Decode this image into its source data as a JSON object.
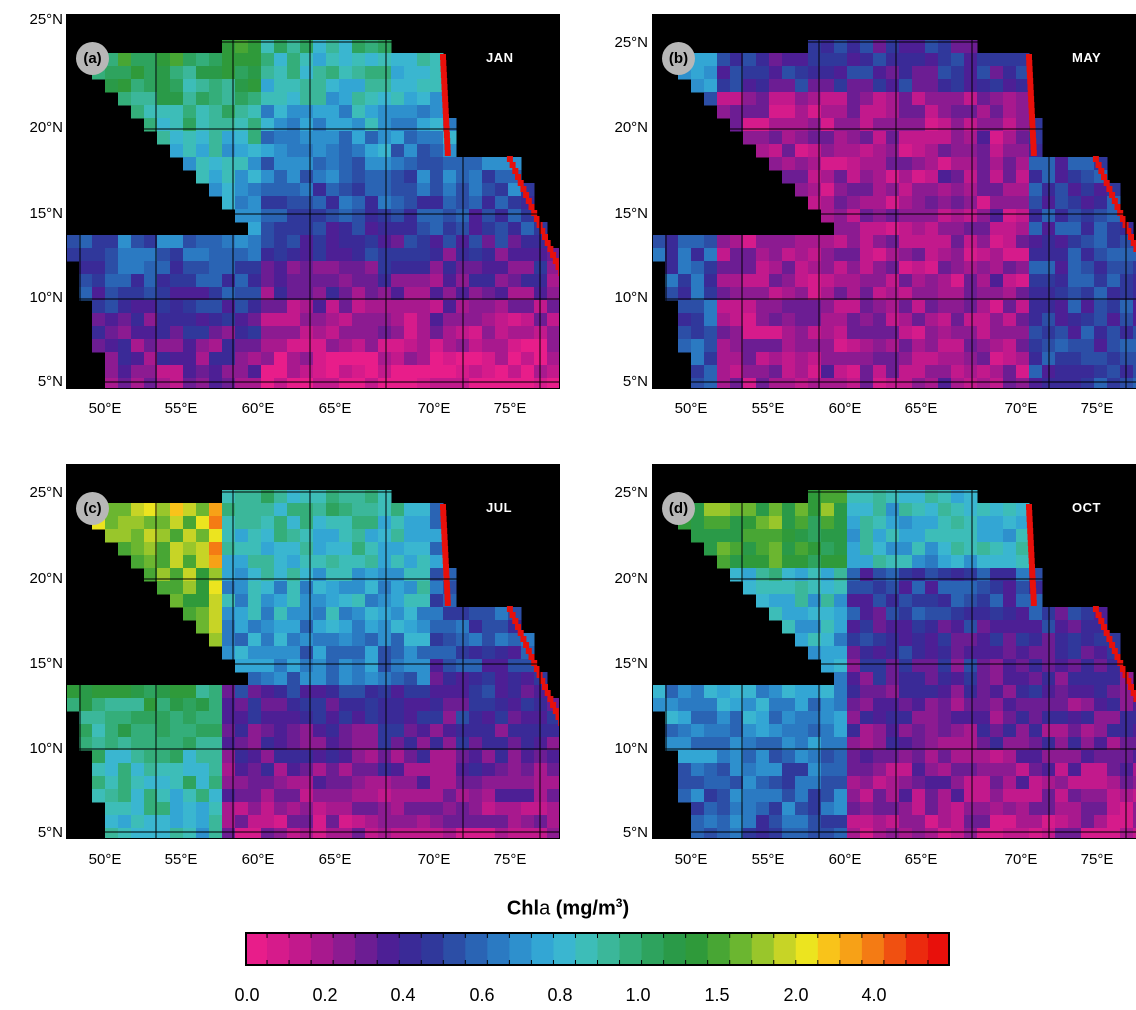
{
  "colorbar": {
    "title_main": "Chl",
    "title_italic": "a",
    "title_unit": "(mg/m",
    "title_sup": "3",
    "title_close": ")",
    "tick_labels": [
      "0.0",
      "0.2",
      "0.4",
      "0.6",
      "0.8",
      "1.0",
      "1.5",
      "2.0",
      "4.0"
    ],
    "colors": [
      "#e81d8a",
      "#d61b8b",
      "#c2198c",
      "#a8198e",
      "#8c1b91",
      "#6c1d93",
      "#4d1f95",
      "#3a2a97",
      "#30389b",
      "#2c4ea6",
      "#2a64b4",
      "#2b7ac2",
      "#2e90cd",
      "#33a6d4",
      "#3ab6d0",
      "#3dbdb8",
      "#3bb79a",
      "#34ae7a",
      "#2ea35e",
      "#2a9a48",
      "#2f9a3a",
      "#48a634",
      "#6bb630",
      "#99c62b",
      "#c7d426",
      "#ece41f",
      "#f9c31a",
      "#f7a117",
      "#f47b14",
      "#f05011",
      "#ec2a0e",
      "#e8100b"
    ]
  },
  "axes": {
    "lat_labels": [
      "25°N",
      "20°N",
      "15°N",
      "10°N",
      "5°N"
    ],
    "lon_labels": [
      "50°E",
      "55°E",
      "60°E",
      "65°E",
      "70°E",
      "75°E"
    ]
  },
  "panels": [
    {
      "letter": "(a)",
      "month": "JAN",
      "pattern": "jan"
    },
    {
      "letter": "(b)",
      "month": "MAY",
      "pattern": "may"
    },
    {
      "letter": "(c)",
      "month": "JUL",
      "pattern": "jul"
    },
    {
      "letter": "(d)",
      "month": "OCT",
      "pattern": "oct"
    }
  ]
}
